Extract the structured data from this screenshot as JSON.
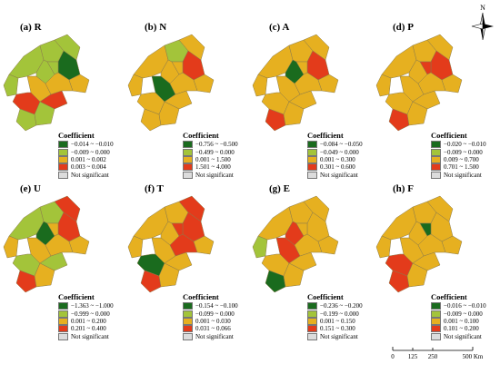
{
  "north": "N",
  "scale": {
    "ticks": [
      "0",
      "125",
      "250",
      "500 Km"
    ]
  },
  "colors": {
    "dark_green": "#1a6b1e",
    "yellow_green": "#a3c43a",
    "gold": "#e6b020",
    "red": "#e33b1b",
    "not_significant": "#dcdcdc"
  },
  "panels": [
    {
      "title": "(a) R",
      "legend_title": "Coefficient",
      "classes": [
        "−0.014 ~ −0.010",
        "−0.009 ~ 0.000",
        "0.001 ~ 0.002",
        "0.003 ~ 0.004",
        "Not significant"
      ],
      "fills": [
        "yellow_green",
        "yellow_green",
        "yellow_green",
        "yellow_green",
        "yellow_green",
        "dark_green",
        "yellow_green",
        "gold",
        "red",
        "red",
        "gold",
        "gold",
        "yellow_green",
        "yellow_green"
      ]
    },
    {
      "title": "(b) N",
      "legend_title": "Coefficient",
      "classes": [
        "−0.756 ~ −0.500",
        "−0.499 ~ 0.000",
        "0.001 ~ 1.500",
        "1.501 ~ 4.000",
        "Not significant"
      ],
      "fills": [
        "gold",
        "gold",
        "yellow_green",
        "gold",
        "gold",
        "red",
        "gold",
        "dark_green",
        "gold",
        "gold",
        "gold",
        "gold",
        "gold",
        "gold"
      ]
    },
    {
      "title": "(c) A",
      "legend_title": "Coefficient",
      "classes": [
        "−0.084 ~ −0.050",
        "−0.049 ~ 0.000",
        "0.001 ~ 0.300",
        "0.301 ~ 0.600",
        "Not significant"
      ],
      "fills": [
        "gold",
        "gold",
        "gold",
        "dark_green",
        "gold",
        "red",
        "gold",
        "gold",
        "gold",
        "gold",
        "gold",
        "gold",
        "red",
        "gold"
      ]
    },
    {
      "title": "(d) P",
      "legend_title": "Coefficient",
      "classes": [
        "−0.020 ~ −0.010",
        "−0.009 ~ 0.000",
        "0.009 ~ 0.700",
        "0.701 ~ 1.500",
        "Not significant"
      ],
      "fills": [
        "gold",
        "gold",
        "gold",
        "gold",
        "gold",
        "red",
        "red",
        "gold",
        "gold",
        "gold",
        "gold",
        "gold",
        "red",
        "gold"
      ]
    },
    {
      "title": "(e) U",
      "legend_title": "Coefficient",
      "classes": [
        "−1.363 ~ −1.000",
        "−0.999 ~ 0.000",
        "0.001 ~ 0.200",
        "0.201 ~ 0.400",
        "Not significant"
      ],
      "fills": [
        "yellow_green",
        "gold",
        "yellow_green",
        "dark_green",
        "red",
        "red",
        "gold",
        "gold",
        "yellow_green",
        "yellow_green",
        "gold",
        "gold",
        "red",
        "gold"
      ]
    },
    {
      "title": "(f) T",
      "legend_title": "Coefficient",
      "classes": [
        "−0.154 ~ −0.100",
        "−0.099 ~ 0.000",
        "0.001 ~ 0.030",
        "0.031 ~ 0.066",
        "Not significant"
      ],
      "fills": [
        "gold",
        "gold",
        "gold",
        "gold",
        "red",
        "red",
        "red",
        "gold",
        "dark_green",
        "gold",
        "red",
        "gold",
        "red",
        "gold"
      ]
    },
    {
      "title": "(g) E",
      "legend_title": "Coefficient",
      "classes": [
        "−0.236 ~ −0.200",
        "−0.199 ~ 0.000",
        "0.001 ~ 0.150",
        "0.151 ~ 0.300",
        "Not significant"
      ],
      "fills": [
        "gold",
        "yellow_green",
        "gold",
        "red",
        "gold",
        "gold",
        "gold",
        "red",
        "gold",
        "gold",
        "gold",
        "gold",
        "dark_green",
        "gold"
      ]
    },
    {
      "title": "(h) F",
      "legend_title": "Coefficient",
      "classes": [
        "−0.016 ~ −0.010",
        "−0.009 ~ 0.000",
        "0.001 ~ 0.100",
        "0.101 ~ 0.200",
        "Not significant"
      ],
      "fills": [
        "gold",
        "gold",
        "gold",
        "gold",
        "gold",
        "gold",
        "dark_green",
        "gold",
        "red",
        "gold",
        "gold",
        "gold",
        "red",
        "gold"
      ]
    }
  ]
}
